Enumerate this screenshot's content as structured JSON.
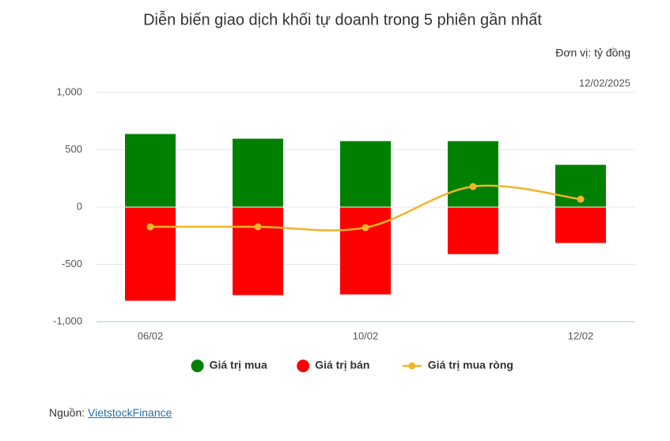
{
  "chart_data": {
    "type": "bar",
    "title": "Diễn biến giao dịch khối tự doanh trong 5 phiên gần nhất",
    "unit": "Đơn vị: tỷ đồng",
    "date": "12/02/2025",
    "categories": [
      "06/02",
      null,
      "10/02",
      null,
      "12/02"
    ],
    "series": [
      {
        "name": "Giá trị mua",
        "color": "#008000",
        "type": "bar",
        "values": [
          641,
          600,
          579,
          579,
          372
        ]
      },
      {
        "name": "Giá trị bán",
        "color": "#ff0000",
        "type": "bar",
        "values": [
          -821,
          -772,
          -766,
          -414,
          -317
        ]
      },
      {
        "name": "Giá trị mua ròng",
        "color": "#f2b428",
        "type": "line",
        "values": [
          -172,
          -172,
          -179,
          179,
          69
        ]
      }
    ],
    "ylim": [
      -1000,
      1000
    ],
    "yticks": [
      {
        "value": -1000,
        "label": "-1,000"
      },
      -500,
      0,
      500,
      {
        "value": 1000,
        "label": "1,000"
      }
    ],
    "grid": true,
    "legend": "bottom",
    "source": {
      "label": "Nguồn: ",
      "link": "VietstockFinance"
    }
  }
}
